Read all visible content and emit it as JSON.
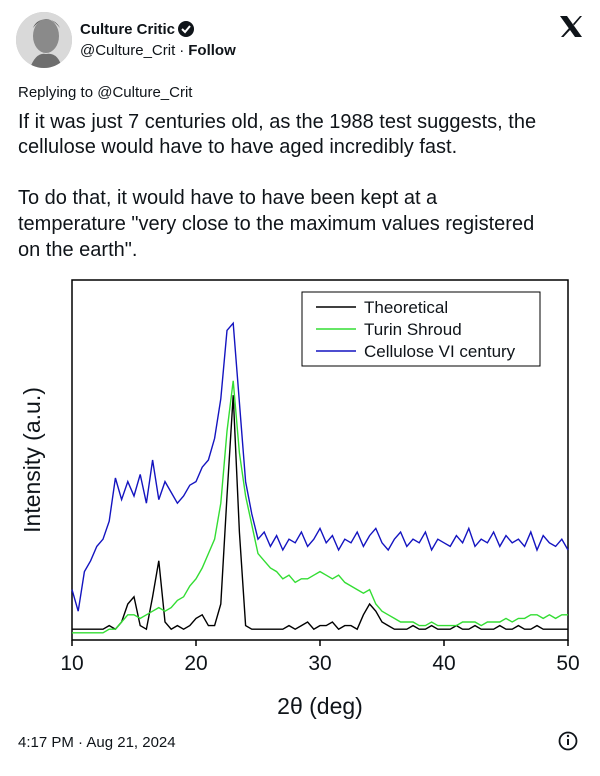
{
  "tweet": {
    "author": "Culture Critic",
    "handle": "@Culture_Crit",
    "separator": "·",
    "follow": "Follow",
    "replying_to": "Replying to @Culture_Crit",
    "text_lines": [
      "If it was just 7 centuries old, as the 1988 test suggests, the",
      "cellulose would have to have aged incredibly fast.",
      "To do that, it would have to have been kept at a",
      "temperature \"very close to the maximum values registered",
      "on the earth\"."
    ],
    "timestamp": "4:17 PM · Aug 21, 2024"
  },
  "chart_data": {
    "type": "line",
    "x_label": "2θ (deg)",
    "y_label": "Intensity (a.u.)",
    "xlim": [
      10,
      50
    ],
    "xticks": [
      10,
      20,
      30,
      40,
      50
    ],
    "ylim": [
      0,
      100
    ],
    "legend": "top-right",
    "x": [
      10,
      10.5,
      11,
      11.5,
      12,
      12.5,
      13,
      13.5,
      14,
      14.5,
      15,
      15.5,
      16,
      16.5,
      17,
      17.5,
      18,
      18.5,
      19,
      19.5,
      20,
      20.5,
      21,
      21.5,
      22,
      22.5,
      23,
      23.5,
      24,
      24.5,
      25,
      25.5,
      26,
      26.5,
      27,
      27.5,
      28,
      28.5,
      29,
      29.5,
      30,
      30.5,
      31,
      31.5,
      32,
      32.5,
      33,
      33.5,
      34,
      34.5,
      35,
      35.5,
      36,
      36.5,
      37,
      37.5,
      38,
      38.5,
      39,
      39.5,
      40,
      40.5,
      41,
      41.5,
      42,
      42.5,
      43,
      43.5,
      44,
      44.5,
      45,
      45.5,
      46,
      46.5,
      47,
      47.5,
      48,
      48.5,
      49,
      49.5,
      50
    ],
    "series": [
      {
        "name": "Theoretical",
        "color": "#000000",
        "values": [
          3,
          3,
          3,
          3,
          3,
          3,
          4,
          3,
          5,
          10,
          12,
          4,
          3,
          12,
          22,
          5,
          3,
          4,
          3,
          4,
          6,
          7,
          4,
          4,
          10,
          40,
          68,
          30,
          4,
          3,
          3,
          3,
          3,
          3,
          3,
          4,
          3,
          4,
          5,
          3,
          4,
          4,
          5,
          3,
          4,
          4,
          3,
          7,
          10,
          8,
          5,
          4,
          3,
          3,
          3,
          4,
          3,
          3,
          4,
          3,
          3,
          3,
          4,
          3,
          3,
          4,
          3,
          3,
          3,
          4,
          3,
          3,
          4,
          3,
          3,
          4,
          3,
          3,
          3,
          3,
          3
        ]
      },
      {
        "name": "Turin Shroud",
        "color": "#33dd33",
        "values": [
          2,
          2,
          2,
          2,
          2,
          2,
          3,
          3,
          5,
          7,
          7,
          6,
          7,
          8,
          9,
          8,
          9,
          11,
          12,
          15,
          17,
          20,
          24,
          28,
          38,
          58,
          72,
          52,
          40,
          32,
          24,
          22,
          20,
          19,
          17,
          18,
          16,
          17,
          17,
          18,
          19,
          18,
          17,
          18,
          16,
          15,
          14,
          13,
          14,
          10,
          8,
          7,
          6,
          5,
          5,
          5,
          4,
          4,
          5,
          4,
          4,
          4,
          4,
          5,
          5,
          5,
          4,
          5,
          5,
          5,
          6,
          5,
          6,
          6,
          7,
          7,
          6,
          7,
          6,
          7,
          7
        ]
      },
      {
        "name": "Cellulose VI century",
        "color": "#1414c0",
        "values": [
          14,
          8,
          19,
          22,
          26,
          28,
          33,
          45,
          39,
          44,
          40,
          46,
          38,
          50,
          39,
          44,
          41,
          38,
          40,
          43,
          44,
          48,
          50,
          56,
          67,
          86,
          88,
          66,
          44,
          35,
          28,
          30,
          26,
          29,
          25,
          28,
          27,
          30,
          26,
          28,
          31,
          27,
          29,
          25,
          28,
          27,
          30,
          26,
          29,
          31,
          27,
          25,
          28,
          30,
          26,
          28,
          27,
          30,
          25,
          28,
          27,
          26,
          29,
          27,
          31,
          26,
          28,
          27,
          30,
          26,
          29,
          27,
          28,
          26,
          30,
          25,
          29,
          27,
          26,
          28,
          25
        ]
      }
    ]
  }
}
